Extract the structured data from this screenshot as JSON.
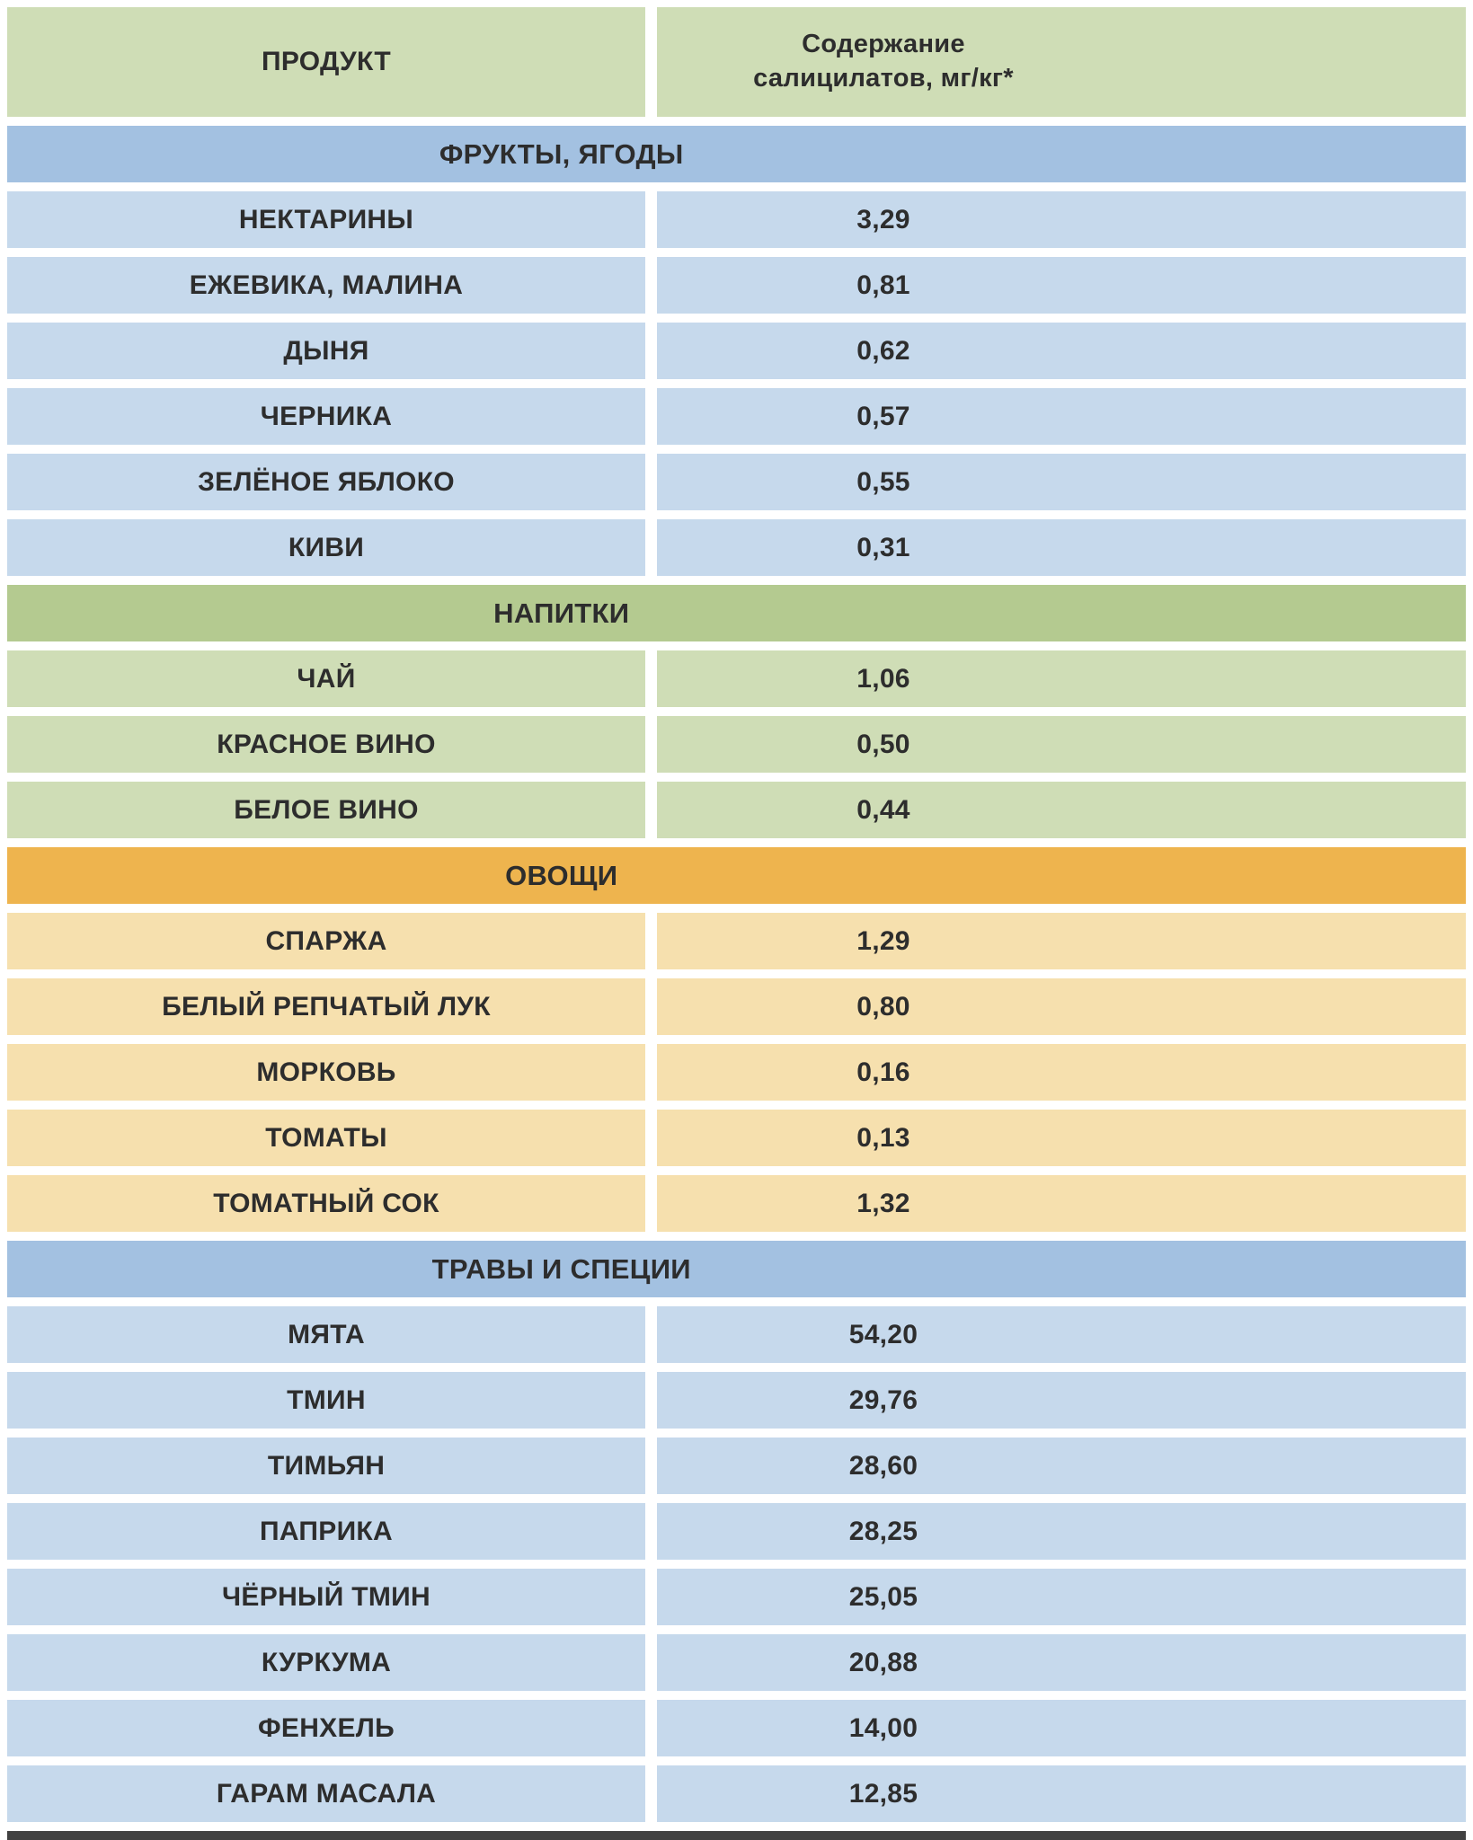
{
  "colors": {
    "header_bg": "#cfddb6",
    "blue_section_bg": "#a3c1e1",
    "blue_row_bg": "#c6d9ec",
    "green_section_bg": "#b4ca90",
    "green_row_bg": "#cfddb6",
    "orange_section_bg": "#eeb44e",
    "orange_row_bg": "#f6e0ae",
    "text": "#2d2d2d",
    "background": "#ffffff",
    "bottom_bar": "#414141"
  },
  "chart_data": {
    "type": "table",
    "columns": [
      "ПРОДУКТ",
      "Содержание салицилатов, мг/кг*"
    ],
    "header": {
      "product_label": "ПРОДУКТ",
      "value_label": "Содержание\nсалицилатов, мг/кг*"
    },
    "sections": [
      {
        "title": "ФРУКТЫ, ЯГОДЫ",
        "theme": "blue",
        "rows": [
          {
            "product": "НЕКТАРИНЫ",
            "value": "3,29"
          },
          {
            "product": "ЕЖЕВИКА, МАЛИНА",
            "value": "0,81"
          },
          {
            "product": "ДЫНЯ",
            "value": "0,62"
          },
          {
            "product": "ЧЕРНИКА",
            "value": "0,57"
          },
          {
            "product": "ЗЕЛЁНОЕ ЯБЛОКО",
            "value": "0,55"
          },
          {
            "product": "КИВИ",
            "value": "0,31"
          }
        ]
      },
      {
        "title": "НАПИТКИ",
        "theme": "green",
        "rows": [
          {
            "product": "ЧАЙ",
            "value": "1,06"
          },
          {
            "product": "КРАСНОЕ ВИНО",
            "value": "0,50"
          },
          {
            "product": "БЕЛОЕ ВИНО",
            "value": "0,44"
          }
        ]
      },
      {
        "title": "ОВОЩИ",
        "theme": "orange",
        "rows": [
          {
            "product": "СПАРЖА",
            "value": "1,29"
          },
          {
            "product": "БЕЛЫЙ РЕПЧАТЫЙ ЛУК",
            "value": "0,80"
          },
          {
            "product": "МОРКОВЬ",
            "value": "0,16"
          },
          {
            "product": "ТОМАТЫ",
            "value": "0,13"
          },
          {
            "product": "ТОМАТНЫЙ СОК",
            "value": "1,32"
          }
        ]
      },
      {
        "title": "ТРАВЫ И СПЕЦИИ",
        "theme": "blue",
        "rows": [
          {
            "product": "МЯТА",
            "value": "54,20"
          },
          {
            "product": "ТМИН",
            "value": "29,76"
          },
          {
            "product": "ТИМЬЯН",
            "value": "28,60"
          },
          {
            "product": "ПАПРИКА",
            "value": "28,25"
          },
          {
            "product": "ЧЁРНЫЙ ТМИН",
            "value": "25,05"
          },
          {
            "product": "КУРКУМА",
            "value": "20,88"
          },
          {
            "product": "ФЕНХЕЛЬ",
            "value": "14,00"
          },
          {
            "product": "ГАРАМ МАСАЛА",
            "value": "12,85"
          }
        ]
      }
    ]
  }
}
